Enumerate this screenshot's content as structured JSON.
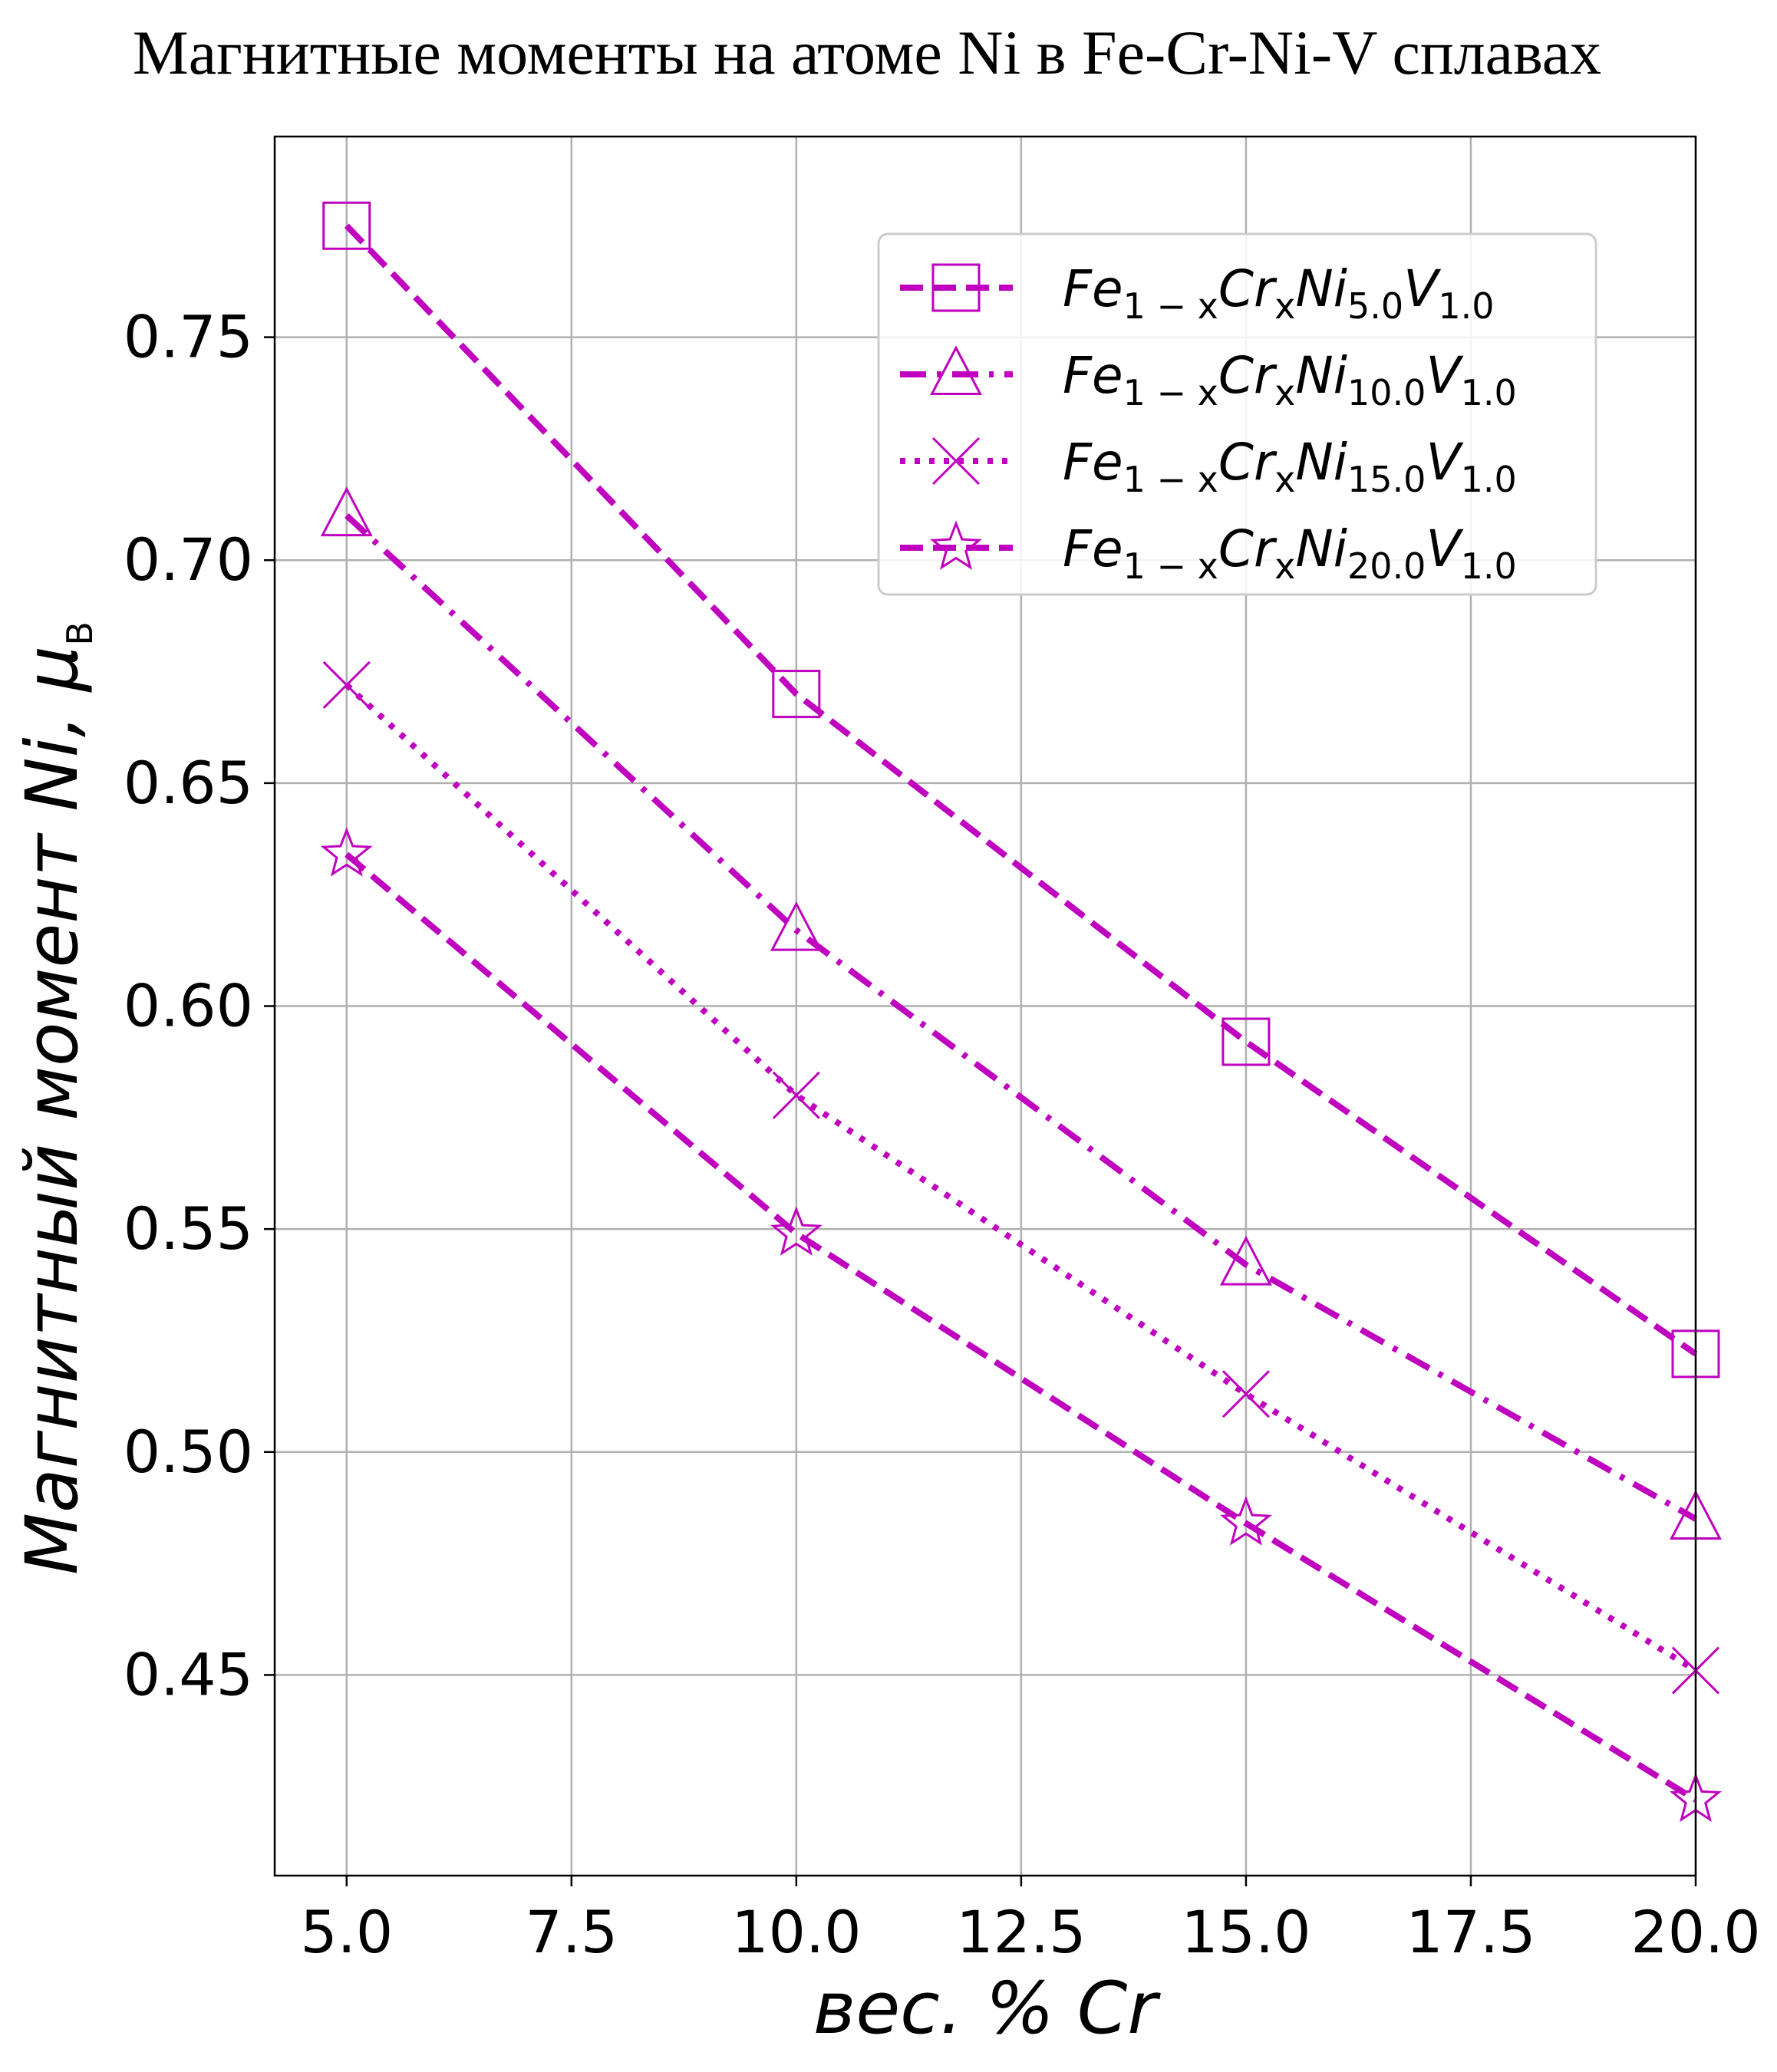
{
  "chart_data": {
    "type": "line",
    "title": "Магнитные моменты на атоме Ni в Fe-Cr-Ni-V сплавах",
    "xlabel": "вес. % Cr",
    "ylabel_main": "Магнитный момент Ni, ",
    "ylabel_unit": "μ",
    "ylabel_unit_sub": "B",
    "xlim": [
      4.2,
      20.0
    ],
    "ylim": [
      0.405,
      0.795
    ],
    "x_ticks": [
      "5.0",
      "7.5",
      "10.0",
      "12.5",
      "15.0",
      "17.5",
      "20.0"
    ],
    "x_tick_values": [
      5.0,
      7.5,
      10.0,
      12.5,
      15.0,
      17.5,
      20.0
    ],
    "y_ticks": [
      "0.45",
      "0.50",
      "0.55",
      "0.60",
      "0.65",
      "0.70",
      "0.75"
    ],
    "y_tick_values": [
      0.45,
      0.5,
      0.55,
      0.6,
      0.65,
      0.7,
      0.75
    ],
    "grid": true,
    "legend_position": "top-right",
    "color": "#bf00bf",
    "x": [
      5.0,
      10.0,
      15.0,
      20.0
    ],
    "series": [
      {
        "legend": {
          "p1": "Fe",
          "s1": "1 − x",
          "p2": "Cr",
          "s2": "x",
          "p3": "Ni",
          "s3": "5.0",
          "p4": "V",
          "s4": "1.0"
        },
        "values": [
          0.775,
          0.67,
          0.592,
          0.522
        ],
        "marker": "square",
        "linestyle": "dashed"
      },
      {
        "legend": {
          "p1": "Fe",
          "s1": "1 − x",
          "p2": "Cr",
          "s2": "x",
          "p3": "Ni",
          "s3": "10.0",
          "p4": "V",
          "s4": "1.0"
        },
        "values": [
          0.71,
          0.617,
          0.542,
          0.485
        ],
        "marker": "triangle",
        "linestyle": "dashdot"
      },
      {
        "legend": {
          "p1": "Fe",
          "s1": "1 − x",
          "p2": "Cr",
          "s2": "x",
          "p3": "Ni",
          "s3": "15.0",
          "p4": "V",
          "s4": "1.0"
        },
        "values": [
          0.672,
          0.58,
          0.513,
          0.451
        ],
        "marker": "x",
        "linestyle": "dotted"
      },
      {
        "legend": {
          "p1": "Fe",
          "s1": "1 − x",
          "p2": "Cr",
          "s2": "x",
          "p3": "Ni",
          "s3": "20.0",
          "p4": "V",
          "s4": "1.0"
        },
        "values": [
          0.634,
          0.549,
          0.484,
          0.422
        ],
        "marker": "star",
        "linestyle": "dashed"
      }
    ]
  }
}
